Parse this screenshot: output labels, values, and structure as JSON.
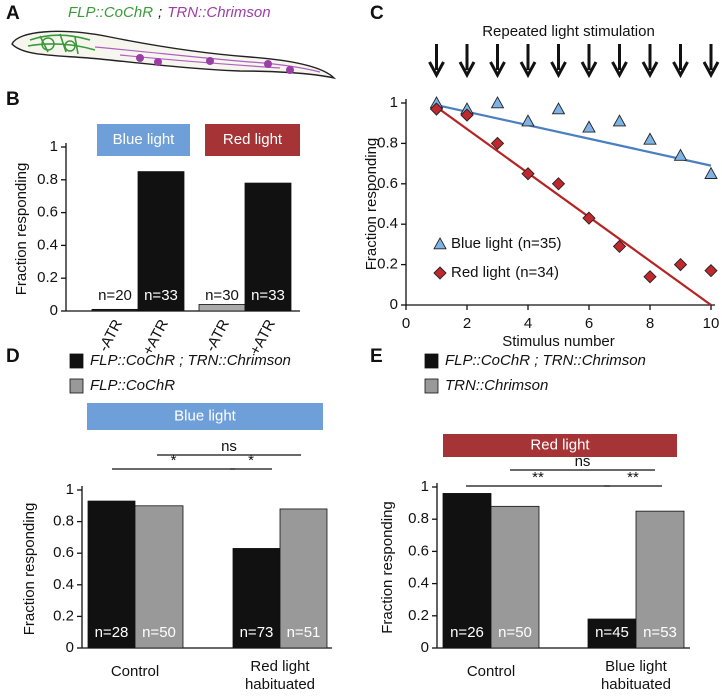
{
  "panel_a": {
    "label": "A",
    "genotype_1": "FLP::CoChR",
    "separator": ";",
    "genotype_2": "TRN::Chrimson"
  },
  "chart_data": [
    {
      "panel": "B",
      "type": "bar",
      "y_label": "Fraction responding",
      "ylim": [
        0,
        1
      ],
      "yticks": [
        0,
        0.2,
        0.4,
        0.6,
        0.8,
        1
      ],
      "groups": [
        {
          "name": "Blue light",
          "color": "#6f9fd8",
          "categories": [
            "-ATR",
            "+ATR"
          ],
          "values": [
            0.01,
            0.85
          ],
          "colors": [
            "#222222",
            "#111111"
          ],
          "n_labels": [
            "n=20",
            "n=33"
          ]
        },
        {
          "name": "Red light",
          "color": "#a63436",
          "categories": [
            "-ATR",
            "+ATR"
          ],
          "values": [
            0.04,
            0.78
          ],
          "colors": [
            "#aaaaaa",
            "#111111"
          ],
          "n_labels": [
            "n=30",
            "n=33"
          ]
        }
      ]
    },
    {
      "panel": "C",
      "type": "scatter",
      "title": "Repeated light stimulation",
      "x_label": "Stimulus number",
      "y_label": "Fraction responding",
      "x": [
        1,
        2,
        3,
        4,
        5,
        6,
        7,
        8,
        9,
        10
      ],
      "xlim": [
        0,
        10
      ],
      "xticks": [
        0,
        2,
        4,
        6,
        8,
        10
      ],
      "ylim": [
        0,
        1
      ],
      "yticks": [
        0,
        0.2,
        0.4,
        0.6,
        0.8,
        1
      ],
      "fit_x": [
        1,
        10
      ],
      "series": [
        {
          "name": "Blue light",
          "n_label": "(n=35)",
          "marker": "triangle",
          "color": "#7fb2e5",
          "line_color": "#4a7fc1",
          "values": [
            1.0,
            0.97,
            1.0,
            0.91,
            0.97,
            0.88,
            0.91,
            0.82,
            0.74,
            0.65
          ],
          "fit": [
            0.99,
            0.69
          ]
        },
        {
          "name": "Red light",
          "n_label": "(n=34)",
          "marker": "diamond",
          "color": "#c0282d",
          "line_color": "#b52424",
          "values": [
            0.97,
            0.94,
            0.8,
            0.65,
            0.6,
            0.43,
            0.29,
            0.14,
            0.2,
            0.17
          ],
          "fit": [
            0.98,
            0.0
          ]
        }
      ]
    },
    {
      "panel": "D",
      "type": "bar",
      "y_label": "Fraction responding",
      "banner": {
        "text": "Blue light",
        "color": "#6f9fd8"
      },
      "ylim": [
        0,
        1
      ],
      "yticks": [
        0,
        0.2,
        0.4,
        0.6,
        0.8,
        1
      ],
      "categories": [
        [
          "Control"
        ],
        [
          "Red light",
          "habituated"
        ]
      ],
      "series": [
        {
          "name": "FLP::CoChR ; TRN::Chrimson",
          "color": "#111111",
          "values": [
            0.93,
            0.63
          ],
          "n_labels": [
            "n=28",
            "n=73"
          ]
        },
        {
          "name": "FLP::CoChR",
          "color": "#999999",
          "values": [
            0.9,
            0.88
          ],
          "n_labels": [
            "n=50",
            "n=51"
          ]
        }
      ],
      "significance": [
        "*",
        "*",
        "ns"
      ]
    },
    {
      "panel": "E",
      "type": "bar",
      "y_label": "Fraction responding",
      "banner": {
        "text": "Red light",
        "color": "#a63436"
      },
      "ylim": [
        0,
        1
      ],
      "yticks": [
        0,
        0.2,
        0.4,
        0.6,
        0.8,
        1
      ],
      "categories": [
        [
          "Control"
        ],
        [
          "Blue light",
          "habituated"
        ]
      ],
      "series": [
        {
          "name": "FLP::CoChR ; TRN::Chrimson",
          "color": "#111111",
          "values": [
            0.96,
            0.18
          ],
          "n_labels": [
            "n=26",
            "n=45"
          ]
        },
        {
          "name": "TRN::Chrimson",
          "color": "#999999",
          "values": [
            0.88,
            0.85
          ],
          "n_labels": [
            "n=50",
            "n=53"
          ]
        }
      ],
      "significance": [
        "**",
        "**",
        "ns"
      ]
    }
  ]
}
